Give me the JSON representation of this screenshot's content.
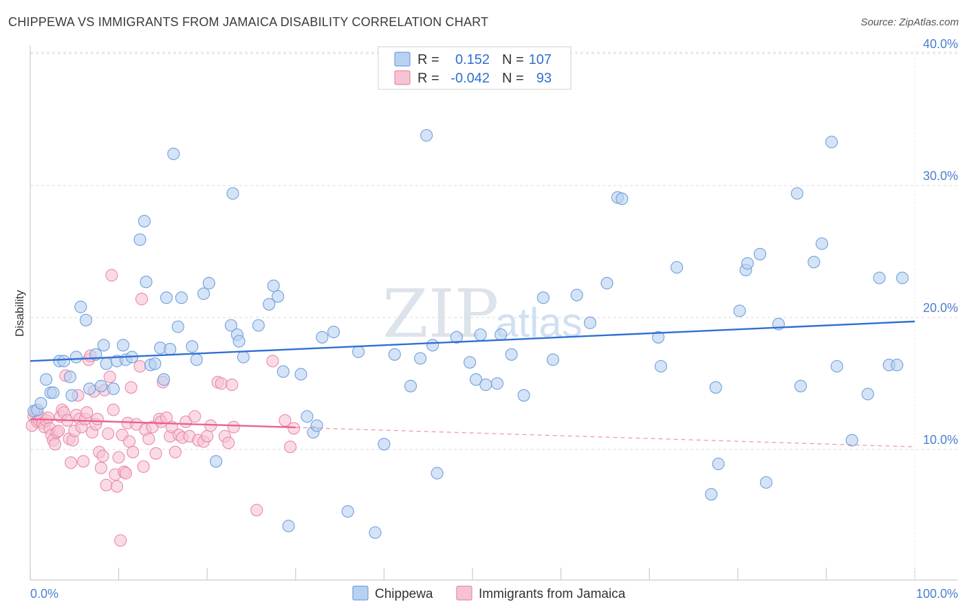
{
  "title": "CHIPPEWA VS IMMIGRANTS FROM JAMAICA DISABILITY CORRELATION CHART",
  "source": "Source: ZipAtlas.com",
  "watermark": {
    "zip": "ZIP",
    "atlas": "atlas"
  },
  "colors": {
    "blue_fill": "#b9d1f0",
    "blue_stroke": "#6e9fe0",
    "blue_line": "#2f6fd0",
    "pink_fill": "#f6c3d3",
    "pink_stroke": "#e889a8",
    "pink_line": "#e8608f",
    "grid": "#d9d9d9",
    "tick_text": "#4a7fcf"
  },
  "legend": {
    "rows": [
      {
        "r_label": "R =",
        "r_value": "0.152",
        "n_label": "N =",
        "n_value": "107"
      },
      {
        "r_label": "R =",
        "r_value": "-0.042",
        "n_label": "N =",
        "n_value": "93"
      }
    ]
  },
  "chart_data": {
    "type": "scatter",
    "title": "CHIPPEWA VS IMMIGRANTS FROM JAMAICA DISABILITY CORRELATION CHART",
    "xlabel": "",
    "ylabel": "Disability",
    "xlim": [
      0,
      100
    ],
    "ylim": [
      0,
      41
    ],
    "x_tick_labels": [
      "0.0%",
      "100.0%"
    ],
    "y_ticks": [
      10,
      20,
      30,
      40
    ],
    "y_tick_labels": [
      "10.0%",
      "20.0%",
      "30.0%",
      "40.0%"
    ],
    "grid": true,
    "legend_position": "top-center",
    "series": [
      {
        "name": "Chippewa",
        "r": 0.152,
        "n": 107,
        "trend": {
          "x0": 0,
          "y0": 16.7,
          "x1": 100,
          "y1": 19.7,
          "solid_to": 100
        },
        "points": [
          [
            0.4,
            12.9
          ],
          [
            0.8,
            13.0
          ],
          [
            1.2,
            13.5
          ],
          [
            1.8,
            15.3
          ],
          [
            2.3,
            14.3
          ],
          [
            2.6,
            14.3
          ],
          [
            3.3,
            16.7
          ],
          [
            3.8,
            16.7
          ],
          [
            4.5,
            15.5
          ],
          [
            4.7,
            14.1
          ],
          [
            5.2,
            17.0
          ],
          [
            5.7,
            20.8
          ],
          [
            6.3,
            19.8
          ],
          [
            6.7,
            14.6
          ],
          [
            7.4,
            17.2
          ],
          [
            8.0,
            14.8
          ],
          [
            8.3,
            17.9
          ],
          [
            8.6,
            16.5
          ],
          [
            9.4,
            14.6
          ],
          [
            9.8,
            16.7
          ],
          [
            10.5,
            17.9
          ],
          [
            10.8,
            16.8
          ],
          [
            11.5,
            17.0
          ],
          [
            12.4,
            25.9
          ],
          [
            12.9,
            27.3
          ],
          [
            13.1,
            22.7
          ],
          [
            13.6,
            16.4
          ],
          [
            14.1,
            16.5
          ],
          [
            14.7,
            17.7
          ],
          [
            15.1,
            15.3
          ],
          [
            15.4,
            21.5
          ],
          [
            15.8,
            17.6
          ],
          [
            16.2,
            32.4
          ],
          [
            16.7,
            19.3
          ],
          [
            17.1,
            21.5
          ],
          [
            18.3,
            17.8
          ],
          [
            18.8,
            16.8
          ],
          [
            19.6,
            21.8
          ],
          [
            20.2,
            22.6
          ],
          [
            21.0,
            9.1
          ],
          [
            22.7,
            19.4
          ],
          [
            22.9,
            29.4
          ],
          [
            23.4,
            18.7
          ],
          [
            23.6,
            18.2
          ],
          [
            24.1,
            17.0
          ],
          [
            25.8,
            19.4
          ],
          [
            27.0,
            21.0
          ],
          [
            27.5,
            22.4
          ],
          [
            28.0,
            21.6
          ],
          [
            28.6,
            15.9
          ],
          [
            29.2,
            4.2
          ],
          [
            30.6,
            15.7
          ],
          [
            31.3,
            12.5
          ],
          [
            32.0,
            11.3
          ],
          [
            32.4,
            11.8
          ],
          [
            33.0,
            18.5
          ],
          [
            34.3,
            18.9
          ],
          [
            35.9,
            5.3
          ],
          [
            37.1,
            17.4
          ],
          [
            39.0,
            3.7
          ],
          [
            40.0,
            10.4
          ],
          [
            41.2,
            17.2
          ],
          [
            43.0,
            14.8
          ],
          [
            44.1,
            16.9
          ],
          [
            44.8,
            33.8
          ],
          [
            45.5,
            17.9
          ],
          [
            46.0,
            8.2
          ],
          [
            48.2,
            18.5
          ],
          [
            49.7,
            16.6
          ],
          [
            50.4,
            15.3
          ],
          [
            50.9,
            18.7
          ],
          [
            51.5,
            14.9
          ],
          [
            52.8,
            15.0
          ],
          [
            53.2,
            18.7
          ],
          [
            54.4,
            17.2
          ],
          [
            55.8,
            14.1
          ],
          [
            58.0,
            21.5
          ],
          [
            59.1,
            16.8
          ],
          [
            61.8,
            21.7
          ],
          [
            63.3,
            19.6
          ],
          [
            65.2,
            22.6
          ],
          [
            66.4,
            29.1
          ],
          [
            66.9,
            29.0
          ],
          [
            71.0,
            18.5
          ],
          [
            71.3,
            16.3
          ],
          [
            73.1,
            23.8
          ],
          [
            77.0,
            6.6
          ],
          [
            77.5,
            14.7
          ],
          [
            77.8,
            8.9
          ],
          [
            80.2,
            20.5
          ],
          [
            80.9,
            23.6
          ],
          [
            81.1,
            24.1
          ],
          [
            82.5,
            24.8
          ],
          [
            83.2,
            7.5
          ],
          [
            84.6,
            19.5
          ],
          [
            86.7,
            29.4
          ],
          [
            87.1,
            14.8
          ],
          [
            88.6,
            24.2
          ],
          [
            89.5,
            25.6
          ],
          [
            90.6,
            33.3
          ],
          [
            91.2,
            16.3
          ],
          [
            92.9,
            10.7
          ],
          [
            94.7,
            14.2
          ],
          [
            96.0,
            23.0
          ],
          [
            97.1,
            16.4
          ],
          [
            98.0,
            16.4
          ],
          [
            98.6,
            23.0
          ]
        ]
      },
      {
        "name": "Immigrants from Jamaica",
        "r": -0.042,
        "n": 93,
        "trend": {
          "x0": 0,
          "y0": 12.3,
          "x1": 100,
          "y1": 10.2,
          "solid_to": 30
        },
        "points": [
          [
            0.2,
            11.8
          ],
          [
            0.4,
            12.5
          ],
          [
            0.6,
            12.9
          ],
          [
            0.8,
            12.1
          ],
          [
            1.0,
            12.2
          ],
          [
            1.2,
            12.4
          ],
          [
            1.4,
            12.0
          ],
          [
            1.6,
            11.7
          ],
          [
            1.8,
            12.2
          ],
          [
            2.0,
            12.4
          ],
          [
            2.2,
            11.6
          ],
          [
            2.4,
            11.1
          ],
          [
            2.6,
            10.7
          ],
          [
            2.8,
            10.4
          ],
          [
            3.0,
            11.3
          ],
          [
            3.2,
            11.4
          ],
          [
            3.4,
            12.5
          ],
          [
            3.6,
            13.0
          ],
          [
            3.8,
            12.8
          ],
          [
            4.0,
            15.6
          ],
          [
            4.2,
            12.2
          ],
          [
            4.4,
            10.8
          ],
          [
            4.6,
            9.0
          ],
          [
            4.8,
            10.7
          ],
          [
            5.0,
            11.4
          ],
          [
            5.2,
            12.6
          ],
          [
            5.4,
            14.1
          ],
          [
            5.6,
            12.3
          ],
          [
            5.8,
            11.7
          ],
          [
            6.0,
            9.1
          ],
          [
            6.2,
            12.3
          ],
          [
            6.4,
            12.8
          ],
          [
            6.6,
            16.8
          ],
          [
            6.8,
            17.1
          ],
          [
            7.0,
            11.3
          ],
          [
            7.2,
            14.4
          ],
          [
            7.4,
            11.9
          ],
          [
            7.6,
            12.3
          ],
          [
            7.8,
            9.8
          ],
          [
            8.0,
            8.6
          ],
          [
            8.2,
            9.5
          ],
          [
            8.4,
            14.5
          ],
          [
            8.6,
            7.3
          ],
          [
            8.8,
            11.2
          ],
          [
            9.0,
            15.5
          ],
          [
            9.2,
            23.2
          ],
          [
            9.4,
            13.0
          ],
          [
            9.6,
            8.1
          ],
          [
            9.8,
            7.2
          ],
          [
            10.0,
            9.4
          ],
          [
            10.2,
            3.1
          ],
          [
            10.4,
            11.1
          ],
          [
            10.6,
            8.3
          ],
          [
            10.8,
            8.2
          ],
          [
            11.0,
            12.0
          ],
          [
            11.2,
            10.6
          ],
          [
            11.4,
            14.7
          ],
          [
            11.6,
            9.8
          ],
          [
            12.0,
            11.9
          ],
          [
            12.4,
            16.3
          ],
          [
            12.6,
            21.4
          ],
          [
            12.8,
            8.7
          ],
          [
            13.0,
            11.5
          ],
          [
            13.4,
            10.8
          ],
          [
            13.8,
            11.7
          ],
          [
            14.2,
            9.7
          ],
          [
            14.6,
            12.3
          ],
          [
            14.8,
            12.1
          ],
          [
            15.0,
            15.1
          ],
          [
            15.4,
            12.4
          ],
          [
            15.8,
            11.0
          ],
          [
            16.0,
            11.7
          ],
          [
            16.4,
            9.8
          ],
          [
            16.8,
            11.1
          ],
          [
            17.2,
            10.9
          ],
          [
            17.6,
            12.1
          ],
          [
            18.0,
            11.0
          ],
          [
            18.6,
            12.5
          ],
          [
            19.0,
            10.7
          ],
          [
            19.6,
            10.6
          ],
          [
            20.0,
            11.0
          ],
          [
            20.4,
            11.8
          ],
          [
            21.2,
            15.1
          ],
          [
            21.6,
            15.0
          ],
          [
            22.0,
            11.0
          ],
          [
            22.4,
            10.5
          ],
          [
            22.8,
            14.9
          ],
          [
            23.0,
            11.7
          ],
          [
            25.6,
            5.4
          ],
          [
            27.4,
            16.7
          ],
          [
            28.8,
            12.2
          ],
          [
            29.4,
            10.2
          ],
          [
            29.8,
            11.6
          ]
        ]
      }
    ]
  }
}
